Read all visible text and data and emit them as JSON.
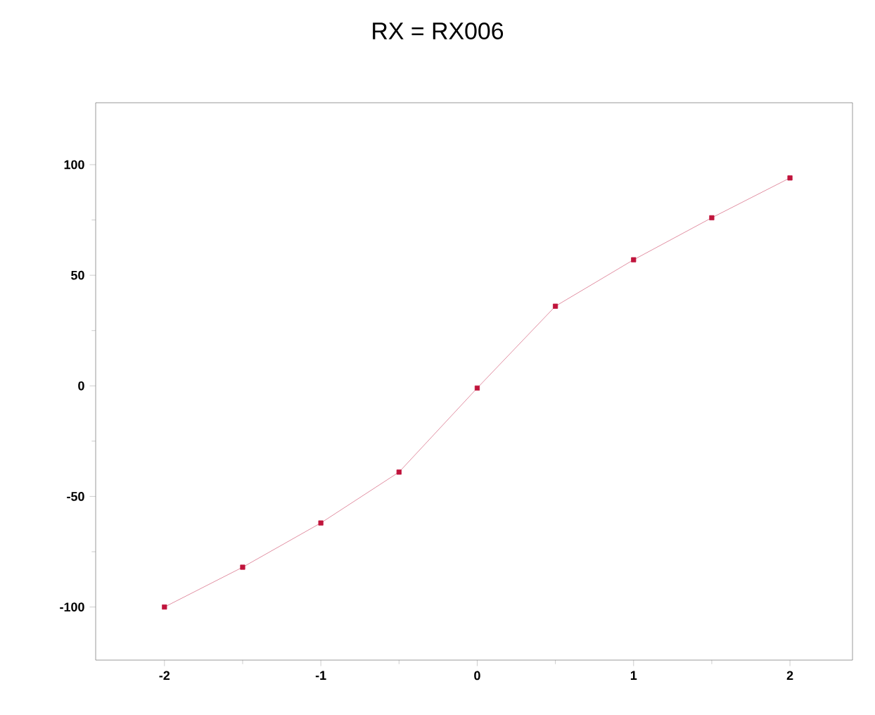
{
  "chart_data": {
    "type": "line",
    "title": "RX = RX006",
    "x": [
      -2,
      -1.5,
      -1,
      -0.5,
      0,
      0.5,
      1,
      1.5,
      2
    ],
    "series": [
      {
        "color": "#c0143c",
        "values": [
          -100,
          -82,
          -62,
          -39,
          -1,
          36,
          57,
          76,
          94
        ]
      }
    ],
    "xlim": [
      -2.44,
      2.4
    ],
    "ylim": [
      -124,
      128
    ],
    "xticks": [
      -2,
      -1,
      0,
      1,
      2
    ],
    "yticks": [
      -100,
      -50,
      0,
      50,
      100
    ],
    "marker": "square",
    "line_style": "solid"
  }
}
